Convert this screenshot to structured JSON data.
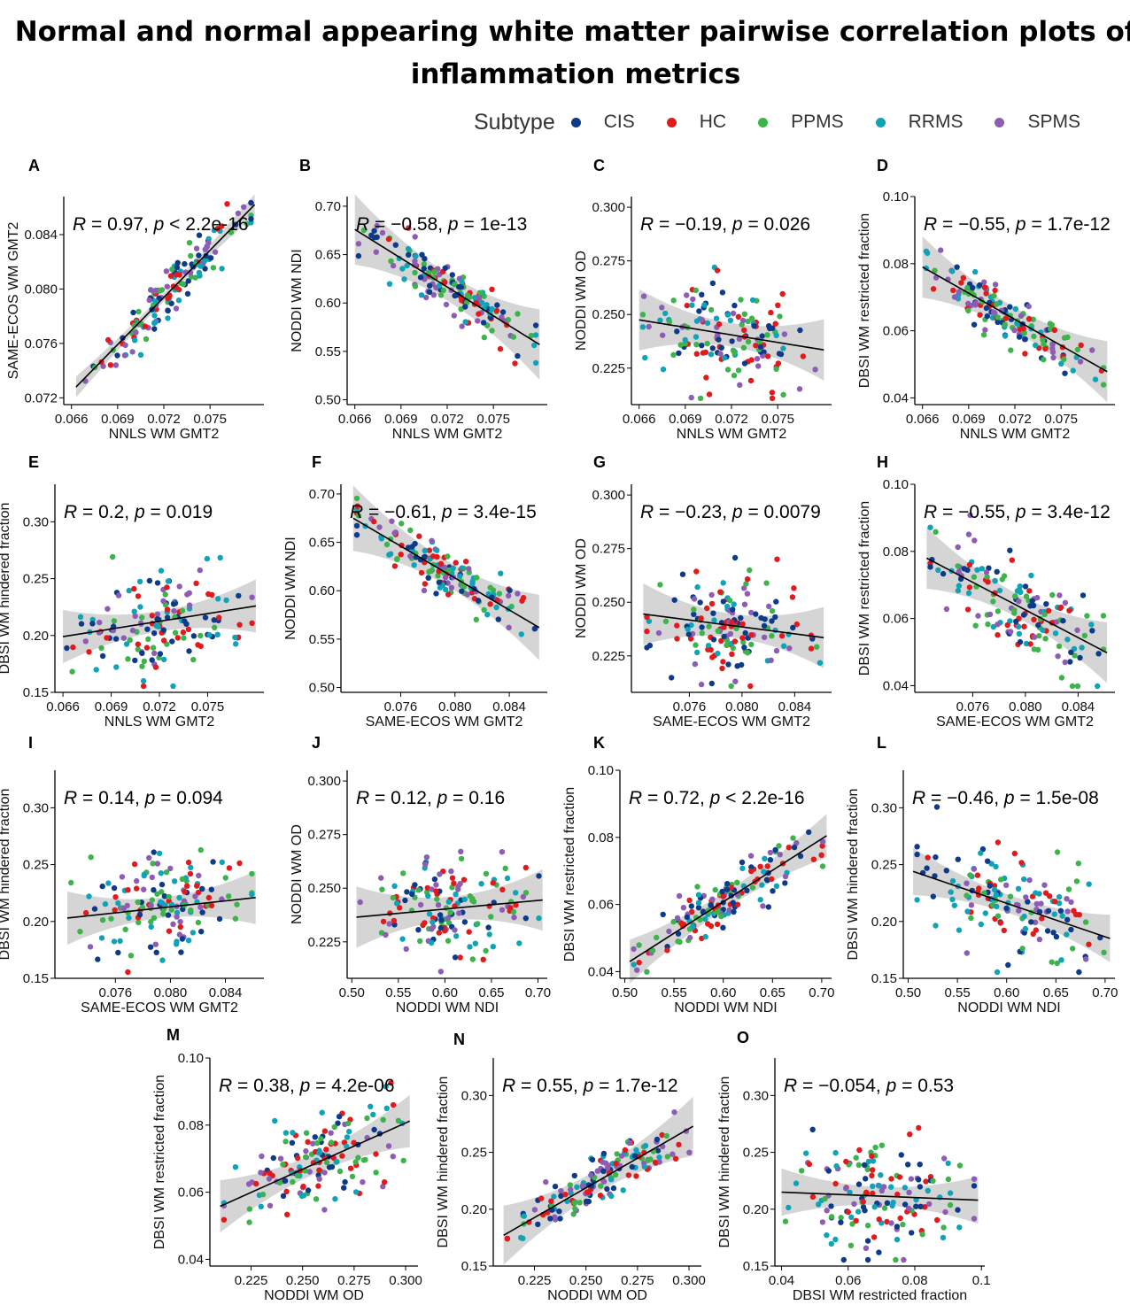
{
  "title": "Normal and normal appearing white matter pairwise correlation plots of inflammation metrics",
  "legend": {
    "title": "Subtype",
    "items": [
      {
        "label": "CIS",
        "color": "#0d3b8a"
      },
      {
        "label": "HC",
        "color": "#e31a1c"
      },
      {
        "label": "PPMS",
        "color": "#3cb44b"
      },
      {
        "label": "RRMS",
        "color": "#0fa3b8"
      },
      {
        "label": "SPMS",
        "color": "#8e5cb5"
      }
    ]
  },
  "chart_data": [
    {
      "type": "scatter",
      "panel": "A",
      "xlabel": "NNLS WM GMT2",
      "ylabel": "SAME-ECOS WM GMT2",
      "xlim": [
        0.0655,
        0.0785
      ],
      "ylim": [
        0.0715,
        0.0868
      ],
      "xticks": [
        "0.066",
        "0.069",
        "0.072",
        "0.075"
      ],
      "yticks": [
        "0.072",
        "0.076",
        "0.080",
        "0.084"
      ],
      "stat": {
        "r": "0.97",
        "p": "< 2.2e-16",
        "sep": ", "
      },
      "fit": {
        "x0": 0.0663,
        "y0": 0.0728,
        "x1": 0.0779,
        "y1": 0.0862
      },
      "band": 0.0003
    },
    {
      "type": "scatter",
      "panel": "B",
      "xlabel": "NNLS WM GMT2",
      "ylabel": "NODDI WM NDI",
      "xlim": [
        0.0655,
        0.0785
      ],
      "ylim": [
        0.495,
        0.71
      ],
      "xticks": [
        "0.066",
        "0.069",
        "0.072",
        "0.075"
      ],
      "yticks": [
        "0.50",
        "0.55",
        "0.60",
        "0.65",
        "0.70"
      ],
      "stat": {
        "r": "−0.58",
        "p": "1e-13",
        "sep": ", "
      },
      "fit": {
        "x0": 0.066,
        "y0": 0.676,
        "x1": 0.078,
        "y1": 0.557
      },
      "band": 0.014
    },
    {
      "type": "scatter",
      "panel": "C",
      "xlabel": "NNLS WM GMT2",
      "ylabel": "NODDI WM OD",
      "xlim": [
        0.0655,
        0.0785
      ],
      "ylim": [
        0.208,
        0.305
      ],
      "xticks": [
        "0.066",
        "0.069",
        "0.072",
        "0.075"
      ],
      "yticks": [
        "0.225",
        "0.250",
        "0.275",
        "0.300"
      ],
      "stat": {
        "r": "−0.19",
        "p": "0.026",
        "sep": ", "
      },
      "fit": {
        "x0": 0.066,
        "y0": 0.2475,
        "x1": 0.078,
        "y1": 0.2335
      },
      "band": 0.0055
    },
    {
      "type": "scatter",
      "panel": "D",
      "xlabel": "NNLS WM GMT2",
      "ylabel": "DBSI WM restricted fraction",
      "xlim": [
        0.0655,
        0.0785
      ],
      "ylim": [
        0.038,
        0.1
      ],
      "xticks": [
        "0.066",
        "0.069",
        "0.072",
        "0.075"
      ],
      "yticks": [
        "0.04",
        "0.06",
        "0.08",
        "0.10"
      ],
      "stat": {
        "r": "−0.55",
        "p": "1.7e-12",
        "sep": ", "
      },
      "fit": {
        "x0": 0.066,
        "y0": 0.079,
        "x1": 0.078,
        "y1": 0.0478
      },
      "band": 0.0035
    },
    {
      "type": "scatter",
      "panel": "E",
      "xlabel": "NNLS WM GMT2",
      "ylabel": "DBSI WM hindered fraction",
      "xlim": [
        0.0655,
        0.0785
      ],
      "ylim": [
        0.15,
        0.333
      ],
      "xticks": [
        "0.066",
        "0.069",
        "0.072",
        "0.075"
      ],
      "yticks": [
        "0.15",
        "0.20",
        "0.25",
        "0.30"
      ],
      "stat": {
        "r": "0.2",
        "p": "0.019",
        "sep": ", "
      },
      "fit": {
        "x0": 0.066,
        "y0": 0.199,
        "x1": 0.078,
        "y1": 0.226
      },
      "band": 0.009
    },
    {
      "type": "scatter",
      "panel": "F",
      "xlabel": "SAME-ECOS WM GMT2",
      "ylabel": "NODDI WM NDI",
      "xlim": [
        0.0716,
        0.0868
      ],
      "ylim": [
        0.495,
        0.71
      ],
      "xticks": [
        "0.076",
        "0.080",
        "0.084"
      ],
      "yticks": [
        "0.50",
        "0.55",
        "0.60",
        "0.65",
        "0.70"
      ],
      "stat": {
        "r": "−0.61",
        "p": "3.4e-15",
        "sep": ", "
      },
      "fit": {
        "x0": 0.0725,
        "y0": 0.675,
        "x1": 0.0862,
        "y1": 0.562
      },
      "band": 0.013
    },
    {
      "type": "scatter",
      "panel": "G",
      "xlabel": "SAME-ECOS WM GMT2",
      "ylabel": "NODDI WM OD",
      "xlim": [
        0.0716,
        0.0868
      ],
      "ylim": [
        0.208,
        0.305
      ],
      "xticks": [
        "0.076",
        "0.080",
        "0.084"
      ],
      "yticks": [
        "0.225",
        "0.250",
        "0.275",
        "0.300"
      ],
      "stat": {
        "r": "−0.23",
        "p": "0.0079",
        "sep": ", "
      },
      "fit": {
        "x0": 0.0725,
        "y0": 0.2445,
        "x1": 0.0862,
        "y1": 0.2335
      },
      "band": 0.0055
    },
    {
      "type": "scatter",
      "panel": "H",
      "xlabel": "SAME-ECOS WM GMT2",
      "ylabel": "DBSI WM restricted fraction",
      "xlim": [
        0.0716,
        0.0868
      ],
      "ylim": [
        0.038,
        0.1
      ],
      "xticks": [
        "0.076",
        "0.080",
        "0.084"
      ],
      "yticks": [
        "0.04",
        "0.06",
        "0.08",
        "0.10"
      ],
      "stat": {
        "r": "−0.55",
        "p": "3.4e-12",
        "sep": ", "
      },
      "fit": {
        "x0": 0.0725,
        "y0": 0.078,
        "x1": 0.0862,
        "y1": 0.0498
      },
      "band": 0.0035
    },
    {
      "type": "scatter",
      "panel": "I",
      "xlabel": "SAME-ECOS WM GMT2",
      "ylabel": "DBSI WM hindered fraction",
      "xlim": [
        0.0716,
        0.0868
      ],
      "ylim": [
        0.15,
        0.333
      ],
      "xticks": [
        "0.076",
        "0.080",
        "0.084"
      ],
      "yticks": [
        "0.15",
        "0.20",
        "0.25",
        "0.30"
      ],
      "stat": {
        "r": "0.14",
        "p": "0.094",
        "sep": ", "
      },
      "fit": {
        "x0": 0.0725,
        "y0": 0.203,
        "x1": 0.0862,
        "y1": 0.221
      },
      "band": 0.009
    },
    {
      "type": "scatter",
      "panel": "J",
      "xlabel": "NODDI WM NDI",
      "ylabel": "NODDI WM OD",
      "xlim": [
        0.495,
        0.71
      ],
      "ylim": [
        0.208,
        0.305
      ],
      "xticks": [
        "0.50",
        "0.55",
        "0.60",
        "0.65",
        "0.70"
      ],
      "yticks": [
        "0.225",
        "0.250",
        "0.275",
        "0.300"
      ],
      "stat": {
        "r": "0.12",
        "p": "0.16",
        "sep": ", "
      },
      "fit": {
        "x0": 0.505,
        "y0": 0.2365,
        "x1": 0.705,
        "y1": 0.2445
      },
      "band": 0.0055
    },
    {
      "type": "scatter",
      "panel": "K",
      "xlabel": "NODDI WM NDI",
      "ylabel": "DBSI WM restricted fraction",
      "xlim": [
        0.495,
        0.71
      ],
      "ylim": [
        0.038,
        0.1
      ],
      "xticks": [
        "0.50",
        "0.55",
        "0.60",
        "0.65",
        "0.70"
      ],
      "yticks": [
        "0.04",
        "0.06",
        "0.08",
        "0.10"
      ],
      "stat": {
        "r": "0.72",
        "p": "< 2.2e-16",
        "sep": ", "
      },
      "fit": {
        "x0": 0.505,
        "y0": 0.043,
        "x1": 0.705,
        "y1": 0.0805
      },
      "band": 0.0025
    },
    {
      "type": "scatter",
      "panel": "L",
      "xlabel": "NODDI WM NDI",
      "ylabel": "DBSI WM hindered fraction",
      "xlim": [
        0.495,
        0.71
      ],
      "ylim": [
        0.15,
        0.333
      ],
      "xticks": [
        "0.50",
        "0.55",
        "0.60",
        "0.65",
        "0.70"
      ],
      "yticks": [
        "0.15",
        "0.20",
        "0.25",
        "0.30"
      ],
      "stat": {
        "r": "−0.46",
        "p": "1.5e-08",
        "sep": ", "
      },
      "fit": {
        "x0": 0.505,
        "y0": 0.244,
        "x1": 0.705,
        "y1": 0.185
      },
      "band": 0.008
    },
    {
      "type": "scatter",
      "panel": "M",
      "xlabel": "NODDI WM OD",
      "ylabel": "DBSI WM restricted fraction",
      "xlim": [
        0.205,
        0.306
      ],
      "ylim": [
        0.038,
        0.1
      ],
      "xticks": [
        "0.225",
        "0.250",
        "0.275",
        "0.300"
      ],
      "yticks": [
        "0.04",
        "0.06",
        "0.08",
        "0.10"
      ],
      "stat": {
        "r": "0.38",
        "p": "4.2e-06",
        "sep": ", "
      },
      "fit": {
        "x0": 0.21,
        "y0": 0.0558,
        "x1": 0.302,
        "y1": 0.0812
      },
      "band": 0.003
    },
    {
      "type": "scatter",
      "panel": "N",
      "xlabel": "NODDI WM OD",
      "ylabel": "DBSI WM hindered fraction",
      "xlim": [
        0.205,
        0.306
      ],
      "ylim": [
        0.15,
        0.333
      ],
      "xticks": [
        "0.225",
        "0.250",
        "0.275",
        "0.300"
      ],
      "yticks": [
        "0.15",
        "0.20",
        "0.25",
        "0.30"
      ],
      "stat": {
        "r": "0.55",
        "p": "1.7e-12",
        "sep": ", "
      },
      "fit": {
        "x0": 0.21,
        "y0": 0.177,
        "x1": 0.302,
        "y1": 0.273
      },
      "band": 0.01
    },
    {
      "type": "scatter",
      "panel": "O",
      "xlabel": "DBSI WM restricted fraction",
      "ylabel": "DBSI WM hindered fraction",
      "xlim": [
        0.038,
        0.101
      ],
      "ylim": [
        0.15,
        0.333
      ],
      "xticks": [
        "0.04",
        "0.06",
        "0.08",
        "0.1"
      ],
      "yticks": [
        "0.15",
        "0.20",
        "0.25",
        "0.30"
      ],
      "stat": {
        "r": "−0.054",
        "p": "0.53",
        "sep": ", "
      },
      "fit": {
        "x0": 0.04,
        "y0": 0.215,
        "x1": 0.099,
        "y1": 0.208
      },
      "band": 0.008
    }
  ]
}
